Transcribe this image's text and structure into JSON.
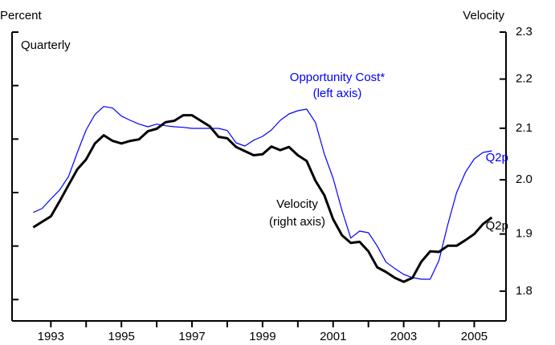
{
  "chart_data": {
    "type": "line",
    "y_label": "Percent",
    "y2_label": "Velocity",
    "subtitle": "Quarterly",
    "annotations": [
      {
        "text": "Opportunity Cost*",
        "color": "#0000ff"
      },
      {
        "text": "(left axis)",
        "color": "#0000ff"
      },
      {
        "text": "Velocity",
        "color": "#000000"
      },
      {
        "text": "(right axis)",
        "color": "#000000"
      },
      {
        "text": "Q2p",
        "color": "#0000ff"
      },
      {
        "text": "Q2p",
        "color": "#000000"
      }
    ],
    "x": [
      1992.5,
      1992.75,
      1993,
      1993.25,
      1993.5,
      1993.75,
      1994,
      1994.25,
      1994.5,
      1994.75,
      1995,
      1995.25,
      1995.5,
      1995.75,
      1996,
      1996.25,
      1996.5,
      1996.75,
      1997,
      1997.25,
      1997.5,
      1997.75,
      1998,
      1998.25,
      1998.5,
      1998.75,
      1999,
      1999.25,
      1999.5,
      1999.75,
      2000,
      2000.25,
      2000.5,
      2000.75,
      2001,
      2001.25,
      2001.5,
      2001.75,
      2002,
      2002.25,
      2002.5,
      2002.75,
      2003,
      2003.25,
      2003.5,
      2003.75,
      2004,
      2004.25,
      2004.5,
      2004.75,
      2005,
      2005.25,
      2005.5
    ],
    "xlim": [
      1991.9,
      2005.9
    ],
    "xticks": [
      1993,
      1995,
      1997,
      1999,
      2001,
      2003,
      2005
    ],
    "ylim": [
      0.6,
      6
    ],
    "yticks": [
      1,
      2,
      3,
      4,
      5,
      6
    ],
    "y2lim": [
      1.75,
      2.3
    ],
    "y2log": true,
    "y2ticks": [
      2.3,
      2.2,
      2.1,
      {
        "value": 2.0,
        "label": "2.0"
      },
      1.9,
      1.8
    ],
    "series": [
      {
        "name": "Opportunity Cost",
        "color": "#0000ff",
        "width": 1.2,
        "axis": "y",
        "values": [
          2.63,
          2.7,
          2.88,
          3.05,
          3.3,
          3.75,
          4.17,
          4.46,
          4.61,
          4.58,
          4.43,
          4.35,
          4.28,
          4.23,
          4.28,
          4.25,
          4.23,
          4.22,
          4.2,
          4.2,
          4.2,
          4.2,
          4.16,
          3.93,
          3.87,
          3.98,
          4.05,
          4.17,
          4.35,
          4.47,
          4.53,
          4.56,
          4.31,
          3.72,
          3.27,
          2.67,
          2.15,
          2.28,
          2.25,
          2.0,
          1.7,
          1.58,
          1.47,
          1.41,
          1.38,
          1.38,
          1.73,
          2.4,
          3.0,
          3.38,
          3.63,
          3.75,
          3.78
        ]
      },
      {
        "name": "Velocity",
        "color": "#000000",
        "width": 3,
        "axis": "y2",
        "values": [
          1.912,
          1.922,
          1.932,
          1.96,
          1.99,
          2.02,
          2.039,
          2.07,
          2.086,
          2.075,
          2.07,
          2.075,
          2.078,
          2.094,
          2.099,
          2.112,
          2.115,
          2.126,
          2.126,
          2.115,
          2.104,
          2.083,
          2.08,
          2.063,
          2.055,
          2.047,
          2.049,
          2.064,
          2.057,
          2.063,
          2.047,
          2.036,
          1.998,
          1.971,
          1.927,
          1.898,
          1.884,
          1.886,
          1.869,
          1.841,
          1.833,
          1.823,
          1.816,
          1.823,
          1.851,
          1.869,
          1.868,
          1.879,
          1.879,
          1.889,
          1.9,
          1.918,
          1.93
        ]
      }
    ]
  }
}
